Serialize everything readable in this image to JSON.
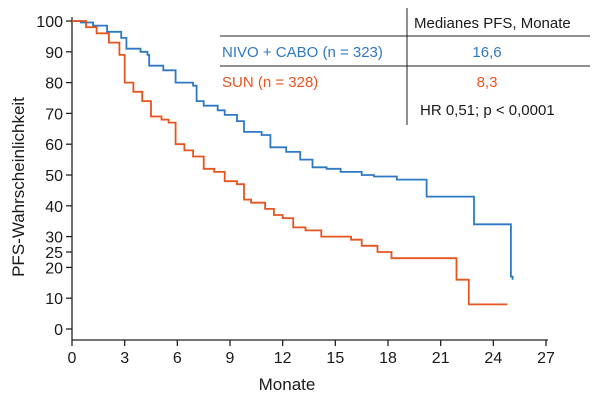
{
  "chart_data": {
    "type": "line",
    "step": true,
    "xlabel": "Monate",
    "ylabel": "PFS-Wahrscheinlichkeit",
    "xlim": [
      0,
      27
    ],
    "ylim": [
      0,
      100
    ],
    "x_ticks": [
      0,
      3,
      6,
      9,
      12,
      15,
      18,
      21,
      24,
      27
    ],
    "y_ticks": [
      0,
      10,
      20,
      25,
      30,
      40,
      50,
      60,
      70,
      80,
      90,
      100
    ],
    "grid": false,
    "series": [
      {
        "name": "NIVO + CABO (n = 323)",
        "color": "#2f78c4",
        "points": [
          [
            0,
            100
          ],
          [
            0.5,
            99.5
          ],
          [
            1.2,
            98.5
          ],
          [
            2.0,
            96.5
          ],
          [
            2.8,
            94.5
          ],
          [
            3.1,
            91
          ],
          [
            3.9,
            90
          ],
          [
            4.3,
            89
          ],
          [
            4.4,
            85.5
          ],
          [
            5.2,
            84
          ],
          [
            5.9,
            80
          ],
          [
            6.9,
            79
          ],
          [
            7.1,
            74
          ],
          [
            7.5,
            72.5
          ],
          [
            8.3,
            71
          ],
          [
            8.7,
            69.5
          ],
          [
            9.4,
            67.5
          ],
          [
            9.8,
            64
          ],
          [
            10.8,
            63
          ],
          [
            11.3,
            59
          ],
          [
            12.2,
            57.5
          ],
          [
            13.0,
            55
          ],
          [
            13.7,
            52.5
          ],
          [
            14.5,
            52
          ],
          [
            15.3,
            51
          ],
          [
            16.5,
            50
          ],
          [
            17.2,
            49.5
          ],
          [
            18.5,
            48.5
          ],
          [
            19.8,
            48.5
          ],
          [
            20.2,
            43
          ],
          [
            22.9,
            43
          ],
          [
            22.9,
            34
          ],
          [
            25.0,
            34
          ],
          [
            25.0,
            17
          ],
          [
            25.1,
            16
          ]
        ]
      },
      {
        "name": "SUN (n = 328)",
        "color": "#e8541f",
        "points": [
          [
            0,
            100
          ],
          [
            0.8,
            98
          ],
          [
            1.4,
            96
          ],
          [
            2.1,
            93
          ],
          [
            2.7,
            89
          ],
          [
            3.0,
            80
          ],
          [
            3.5,
            77
          ],
          [
            4.0,
            74
          ],
          [
            4.5,
            69
          ],
          [
            5.1,
            68
          ],
          [
            5.5,
            67
          ],
          [
            5.9,
            60
          ],
          [
            6.4,
            58
          ],
          [
            6.9,
            56
          ],
          [
            7.5,
            52
          ],
          [
            8.1,
            51
          ],
          [
            8.7,
            48
          ],
          [
            9.4,
            47
          ],
          [
            9.8,
            42
          ],
          [
            10.2,
            41
          ],
          [
            11.0,
            39
          ],
          [
            11.5,
            37
          ],
          [
            12.0,
            36
          ],
          [
            12.6,
            33
          ],
          [
            13.3,
            32
          ],
          [
            14.2,
            30
          ],
          [
            15.9,
            29
          ],
          [
            16.5,
            27
          ],
          [
            17.4,
            25
          ],
          [
            18.2,
            23
          ],
          [
            21.9,
            23
          ],
          [
            21.9,
            16
          ],
          [
            22.6,
            16
          ],
          [
            22.6,
            8
          ],
          [
            24.8,
            8
          ]
        ]
      }
    ],
    "legend_table": {
      "header": "Medianes PFS, Monate",
      "rows": [
        {
          "label": "NIVO + CABO (n = 323)",
          "value": "16,6",
          "color": "#2f78c4"
        },
        {
          "label": "SUN (n = 328)",
          "value": "8,3",
          "color": "#e8541f"
        }
      ],
      "footer": "HR 0,51; p < 0,0001"
    }
  }
}
